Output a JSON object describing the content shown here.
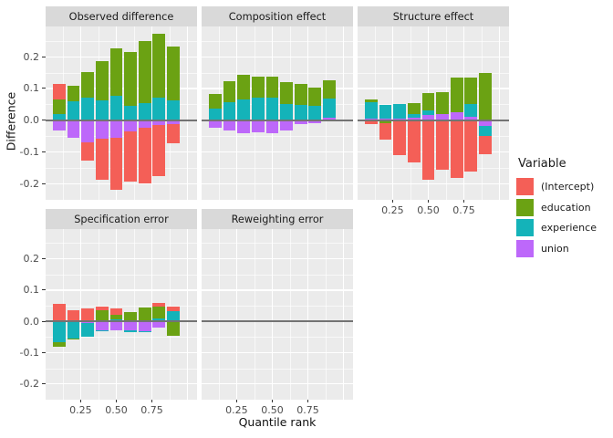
{
  "chart_data": {
    "type": "bar",
    "subtype": "stacked-faceted-decomposition",
    "xlabel": "Quantile rank",
    "ylabel": "Difference",
    "categories": [
      0.1,
      0.2,
      0.3,
      0.4,
      0.5,
      0.6,
      0.7,
      0.8,
      0.9
    ],
    "x_ticks": [
      "0.25",
      "0.50",
      "0.75"
    ],
    "x_tick_values": [
      0.25,
      0.5,
      0.75
    ],
    "y_ticks": [
      "0.2",
      "0.1",
      "0.0",
      "-0.1",
      "-0.2"
    ],
    "y_tick_values": [
      0.2,
      0.1,
      0.0,
      -0.1,
      -0.2
    ],
    "ylim": [
      -0.25,
      0.295
    ],
    "xlim": [
      0.004,
      1.067
    ],
    "bar_width": 0.088,
    "grid": "on",
    "legend_position": "right",
    "legend": {
      "title": "Variable",
      "entries": [
        {
          "label": "(Intercept)",
          "color": "#f45f57"
        },
        {
          "label": "education",
          "color": "#6ba213"
        },
        {
          "label": "experience",
          "color": "#14b3b9"
        },
        {
          "label": "union",
          "color": "#bd68fa"
        }
      ]
    },
    "stack_order_from_zero": [
      "union",
      "experience",
      "education",
      "(Intercept)"
    ],
    "facets": [
      {
        "title": "Observed difference",
        "series": [
          {
            "name": "(Intercept)",
            "values": [
              0.05,
              0.0,
              -0.057,
              -0.13,
              -0.165,
              -0.156,
              -0.177,
              -0.161,
              -0.06
            ]
          },
          {
            "name": "education",
            "values": [
              0.044,
              0.048,
              0.081,
              0.125,
              0.15,
              0.169,
              0.194,
              0.201,
              0.171
            ]
          },
          {
            "name": "experience",
            "values": [
              0.021,
              0.06,
              0.07,
              0.062,
              0.077,
              0.045,
              0.055,
              0.07,
              0.062
            ]
          },
          {
            "name": "union",
            "values": [
              -0.032,
              -0.054,
              -0.069,
              -0.058,
              -0.054,
              -0.036,
              -0.022,
              -0.015,
              -0.011
            ]
          }
        ]
      },
      {
        "title": "Composition effect",
        "series": [
          {
            "name": "(Intercept)",
            "values": [
              0,
              0,
              0,
              0,
              0,
              0,
              0,
              0,
              0
            ]
          },
          {
            "name": "education",
            "values": [
              0.046,
              0.067,
              0.077,
              0.067,
              0.067,
              0.07,
              0.067,
              0.058,
              0.06
            ]
          },
          {
            "name": "experience",
            "values": [
              0.038,
              0.056,
              0.065,
              0.07,
              0.07,
              0.051,
              0.048,
              0.046,
              0.058
            ]
          },
          {
            "name": "union",
            "values": [
              -0.023,
              -0.033,
              -0.04,
              -0.037,
              -0.04,
              -0.031,
              -0.012,
              -0.009,
              0.009
            ]
          }
        ]
      },
      {
        "title": "Structure effect",
        "series": [
          {
            "name": "(Intercept)",
            "values": [
              -0.012,
              -0.05,
              -0.105,
              -0.131,
              -0.186,
              -0.155,
              -0.18,
              -0.16,
              -0.058
            ]
          },
          {
            "name": "education",
            "values": [
              0.007,
              -0.01,
              -0.004,
              0.035,
              0.056,
              0.07,
              0.11,
              0.082,
              0.15
            ]
          },
          {
            "name": "experience",
            "values": [
              0.054,
              0.045,
              0.048,
              0.011,
              0.014,
              0.0,
              0.0,
              0.04,
              -0.032
            ]
          },
          {
            "name": "union",
            "values": [
              0.004,
              0.004,
              0.004,
              0.008,
              0.017,
              0.019,
              0.024,
              0.011,
              -0.018
            ]
          }
        ]
      },
      {
        "title": "Specification error",
        "series": [
          {
            "name": "(Intercept)",
            "values": [
              0.057,
              0.037,
              0.039,
              0.011,
              0.021,
              0.0,
              0.0,
              0.012,
              0.015
            ]
          },
          {
            "name": "education",
            "values": [
              -0.015,
              -0.002,
              0.002,
              0.035,
              0.015,
              0.031,
              0.045,
              0.038,
              -0.042
            ]
          },
          {
            "name": "experience",
            "values": [
              -0.064,
              -0.051,
              -0.044,
              -0.003,
              0.006,
              -0.004,
              -0.003,
              0.01,
              0.033
            ]
          },
          {
            "name": "union",
            "values": [
              -0.002,
              -0.003,
              -0.004,
              -0.029,
              -0.028,
              -0.029,
              -0.031,
              -0.021,
              -0.003
            ]
          }
        ]
      },
      {
        "title": "Reweighting error",
        "series": [
          {
            "name": "(Intercept)",
            "values": [
              0,
              0,
              0,
              0,
              0,
              0,
              0,
              0,
              0
            ]
          },
          {
            "name": "education",
            "values": [
              0,
              0,
              0,
              0,
              0,
              0,
              0,
              0,
              0
            ]
          },
          {
            "name": "experience",
            "values": [
              0,
              0,
              0,
              0,
              0,
              0,
              0,
              0,
              0
            ]
          },
          {
            "name": "union",
            "values": [
              0,
              0,
              0,
              0,
              0,
              0,
              0,
              0,
              0
            ]
          }
        ]
      }
    ]
  }
}
